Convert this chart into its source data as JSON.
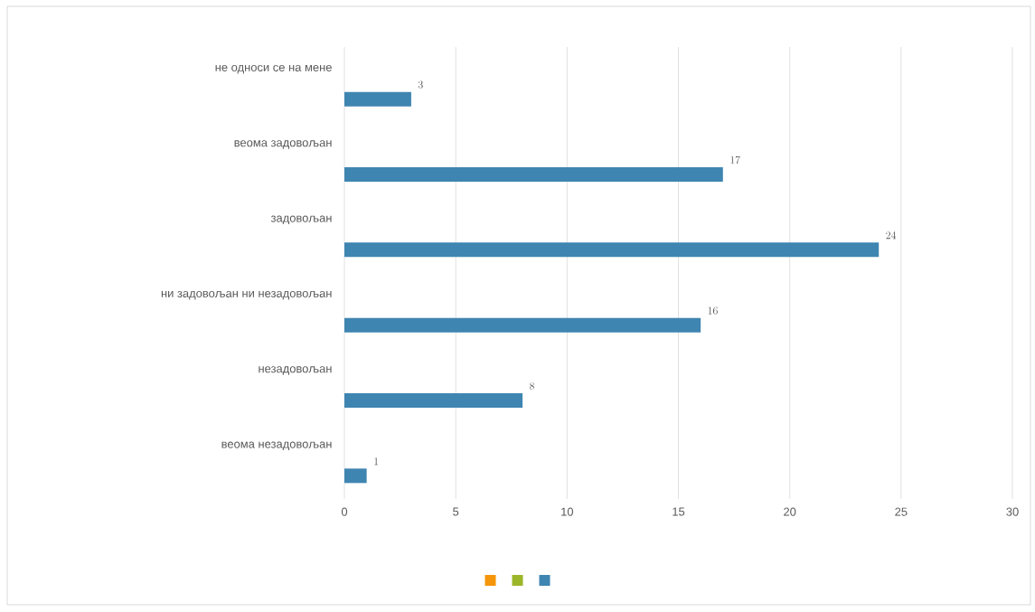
{
  "chart_data": {
    "type": "bar",
    "orientation": "horizontal",
    "categories": [
      "не односи се на мене",
      "веома задовољан",
      "задовољан",
      "ни задовољан ни незадовољан",
      "незадовољан",
      "веома незадовољан"
    ],
    "series": [
      {
        "color": "#f5960a",
        "values": [
          null,
          null,
          null,
          null,
          null,
          null
        ]
      },
      {
        "color": "#9cb62a",
        "values": [
          null,
          null,
          null,
          null,
          null,
          null
        ]
      },
      {
        "color": "#3f85b1",
        "values": [
          3,
          17,
          24,
          16,
          8,
          1
        ]
      }
    ],
    "xlim": [
      0,
      30
    ],
    "xticks": [
      0,
      5,
      10,
      15,
      20,
      25,
      30
    ],
    "grid": "x",
    "data_labels": true
  }
}
